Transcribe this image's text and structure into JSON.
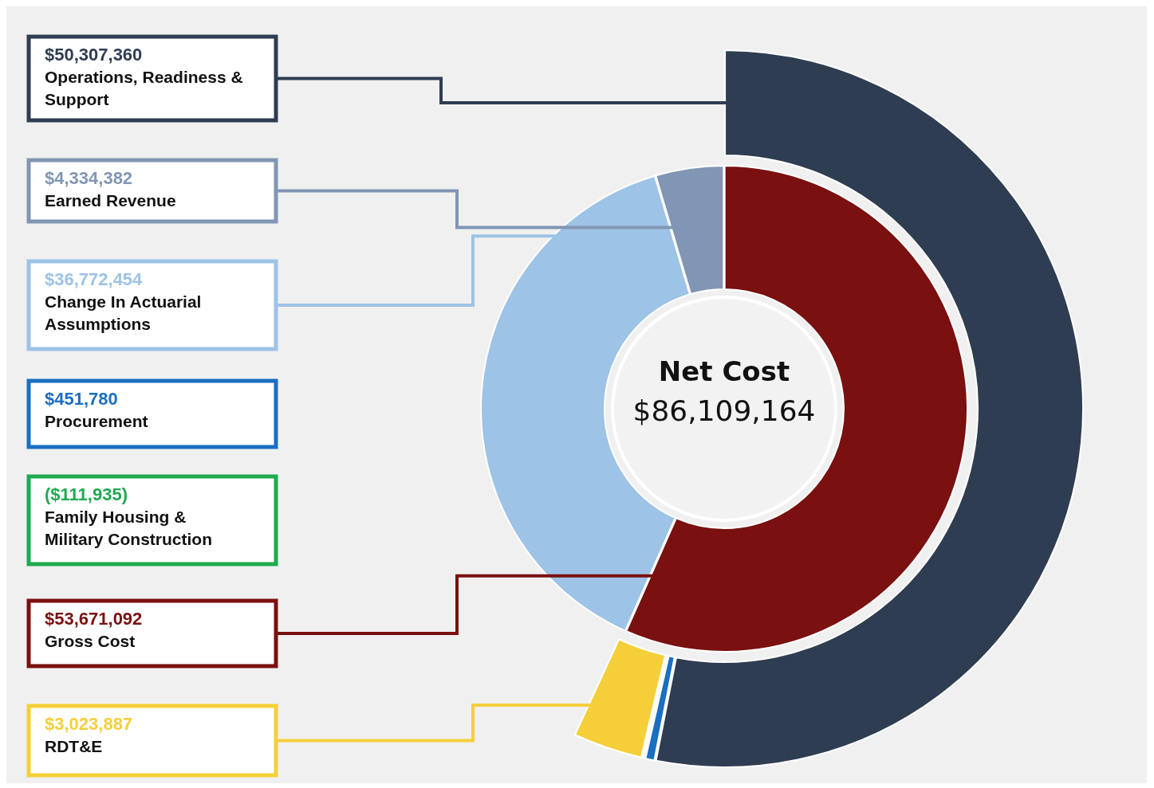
{
  "chart_data": {
    "type": "other",
    "title": "Net Cost",
    "subtitle": "$86,109,164",
    "categories": [
      "Operations, Readiness & Support",
      "Earned Revenue",
      "Change In Actuarial Assumptions",
      "Procurement",
      "Family Housing & Military Construction",
      "Gross Cost",
      "RDT&E"
    ],
    "colors": [
      "#2f3d52",
      "#8196b4",
      "#9dc3e6",
      "#1a6fc0",
      "#1faa50",
      "#7a1010",
      "#f5cf3a"
    ],
    "series": [
      {
        "values": [
          50307360,
          null,
          null,
          451780,
          -111935,
          null,
          3023887
        ],
        "value_labels": [
          "$50,307,360",
          null,
          null,
          "$451,780",
          "($111,935)",
          null,
          "$3,023,887"
        ]
      },
      {
        "values": [
          null,
          4334382,
          36772454,
          null,
          null,
          53671092,
          null
        ],
        "value_labels": [
          null,
          "$4,334,382",
          "$36,772,454",
          null,
          null,
          "$53,671,092",
          null
        ]
      }
    ]
  }
}
